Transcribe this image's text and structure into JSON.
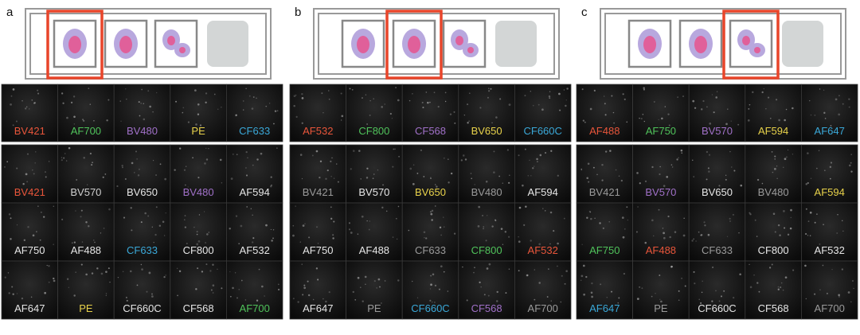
{
  "panels": [
    {
      "letter": "a",
      "selected": 0,
      "top_row": [
        {
          "text": "BV421",
          "color": "#e8553a"
        },
        {
          "text": "AF700",
          "color": "#4fc25a"
        },
        {
          "text": "BV480",
          "color": "#a070c8"
        },
        {
          "text": "PE",
          "color": "#e8d24a"
        },
        {
          "text": "CF633",
          "color": "#3aa8d8"
        }
      ],
      "grid": [
        [
          {
            "text": "BV421",
            "color": "#e8553a"
          },
          {
            "text": "BV570",
            "color": "#cfcfcf"
          },
          {
            "text": "BV650",
            "color": "#e6e6e6"
          },
          {
            "text": "BV480",
            "color": "#a070c8"
          },
          {
            "text": "AF594",
            "color": "#e6e6e6"
          }
        ],
        [
          {
            "text": "AF750",
            "color": "#e6e6e6"
          },
          {
            "text": "AF488",
            "color": "#e6e6e6"
          },
          {
            "text": "CF633",
            "color": "#3aa8d8"
          },
          {
            "text": "CF800",
            "color": "#e6e6e6"
          },
          {
            "text": "AF532",
            "color": "#e6e6e6"
          }
        ],
        [
          {
            "text": "AF647",
            "color": "#e6e6e6"
          },
          {
            "text": "PE",
            "color": "#e8d24a"
          },
          {
            "text": "CF660C",
            "color": "#e6e6e6"
          },
          {
            "text": "CF568",
            "color": "#e6e6e6"
          },
          {
            "text": "AF700",
            "color": "#4fc25a"
          }
        ]
      ]
    },
    {
      "letter": "b",
      "selected": 1,
      "top_row": [
        {
          "text": "AF532",
          "color": "#e8553a"
        },
        {
          "text": "CF800",
          "color": "#4fc25a"
        },
        {
          "text": "CF568",
          "color": "#a070c8"
        },
        {
          "text": "BV650",
          "color": "#e8d24a"
        },
        {
          "text": "CF660C",
          "color": "#3aa8d8"
        }
      ],
      "grid": [
        [
          {
            "text": "BV421",
            "color": "#9a9a9a"
          },
          {
            "text": "BV570",
            "color": "#e6e6e6"
          },
          {
            "text": "BV650",
            "color": "#e8d24a"
          },
          {
            "text": "BV480",
            "color": "#9a9a9a"
          },
          {
            "text": "AF594",
            "color": "#e6e6e6"
          }
        ],
        [
          {
            "text": "AF750",
            "color": "#e6e6e6"
          },
          {
            "text": "AF488",
            "color": "#e6e6e6"
          },
          {
            "text": "CF633",
            "color": "#9a9a9a"
          },
          {
            "text": "CF800",
            "color": "#4fc25a"
          },
          {
            "text": "AF532",
            "color": "#e8553a"
          }
        ],
        [
          {
            "text": "AF647",
            "color": "#e6e6e6"
          },
          {
            "text": "PE",
            "color": "#9a9a9a"
          },
          {
            "text": "CF660C",
            "color": "#3aa8d8"
          },
          {
            "text": "CF568",
            "color": "#a070c8"
          },
          {
            "text": "AF700",
            "color": "#9a9a9a"
          }
        ]
      ]
    },
    {
      "letter": "c",
      "selected": 2,
      "top_row": [
        {
          "text": "AF488",
          "color": "#e8553a"
        },
        {
          "text": "AF750",
          "color": "#4fc25a"
        },
        {
          "text": "BV570",
          "color": "#a070c8"
        },
        {
          "text": "AF594",
          "color": "#e8d24a"
        },
        {
          "text": "AF647",
          "color": "#3aa8d8"
        }
      ],
      "grid": [
        [
          {
            "text": "BV421",
            "color": "#9a9a9a"
          },
          {
            "text": "BV570",
            "color": "#a070c8"
          },
          {
            "text": "BV650",
            "color": "#e6e6e6"
          },
          {
            "text": "BV480",
            "color": "#9a9a9a"
          },
          {
            "text": "AF594",
            "color": "#e8d24a"
          }
        ],
        [
          {
            "text": "AF750",
            "color": "#4fc25a"
          },
          {
            "text": "AF488",
            "color": "#e8553a"
          },
          {
            "text": "CF633",
            "color": "#9a9a9a"
          },
          {
            "text": "CF800",
            "color": "#e6e6e6"
          },
          {
            "text": "AF532",
            "color": "#e6e6e6"
          }
        ],
        [
          {
            "text": "AF647",
            "color": "#3aa8d8"
          },
          {
            "text": "PE",
            "color": "#9a9a9a"
          },
          {
            "text": "CF660C",
            "color": "#e6e6e6"
          },
          {
            "text": "CF568",
            "color": "#e6e6e6"
          },
          {
            "text": "AF700",
            "color": "#9a9a9a"
          }
        ]
      ]
    }
  ]
}
